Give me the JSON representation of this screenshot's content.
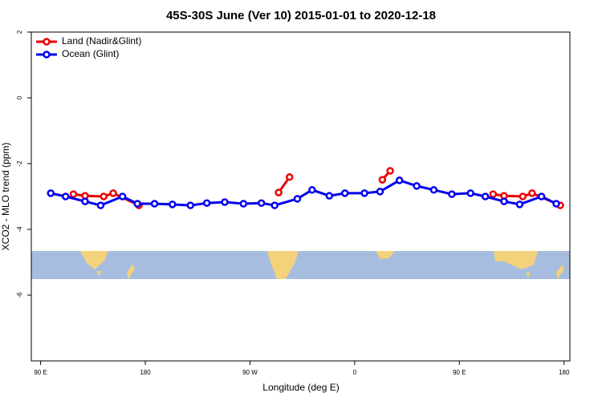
{
  "chart_data": {
    "type": "line",
    "title": "45S-30S June (Ver 10)   2015-01-01 to 2020-12-18",
    "xlabel": "Longitude (deg E)",
    "ylabel": "XCO2 - MLO trend (ppm)",
    "xlim": [
      82,
      545
    ],
    "ylim": [
      -8,
      2
    ],
    "xticks": [
      {
        "value": 90,
        "label": "90 E"
      },
      {
        "value": 180,
        "label": "180"
      },
      {
        "value": 270,
        "label": "90 W"
      },
      {
        "value": 360,
        "label": "0"
      },
      {
        "value": 450,
        "label": "90 E"
      },
      {
        "value": 540,
        "label": "180"
      }
    ],
    "yticks": [
      -6,
      -4,
      -2,
      0,
      2
    ],
    "legend": "top-left",
    "series": [
      {
        "name": "Land (Nadir&Glint)",
        "color": "#ee0000",
        "x": [
          118.2,
          128.2,
          144.3,
          152.4,
          174.5,
          null,
          294.6,
          304,
          null,
          383.8,
          390.5,
          null,
          479,
          488.4,
          504.5,
          512.5,
          536.7
        ],
        "values": [
          -2.93,
          -2.98,
          -3.0,
          -2.9,
          -3.27,
          null,
          -2.88,
          -2.41,
          null,
          -2.49,
          -2.22,
          null,
          -2.93,
          -2.98,
          -3.0,
          -2.9,
          -3.27
        ]
      },
      {
        "name": "Ocean (Glint)",
        "color": "#0000ee",
        "x": [
          98.7,
          111.5,
          128.2,
          141.6,
          160.4,
          173.2,
          187.9,
          203.3,
          218.8,
          232.9,
          248.3,
          264.4,
          279.8,
          291.2,
          310.7,
          323.4,
          338.2,
          351.6,
          368.4,
          381.8,
          398.5,
          413.3,
          428,
          443.5,
          459.6,
          472.3,
          488.4,
          501.8,
          520.6,
          533.3
        ],
        "values": [
          -2.9,
          -3.0,
          -3.15,
          -3.27,
          -3.0,
          -3.22,
          -3.22,
          -3.24,
          -3.27,
          -3.2,
          -3.17,
          -3.22,
          -3.2,
          -3.27,
          -3.07,
          -2.8,
          -2.98,
          -2.9,
          -2.9,
          -2.85,
          -2.51,
          -2.68,
          -2.8,
          -2.93,
          -2.9,
          -3.0,
          -3.15,
          -3.24,
          -3.0,
          -3.22
        ]
      }
    ]
  }
}
